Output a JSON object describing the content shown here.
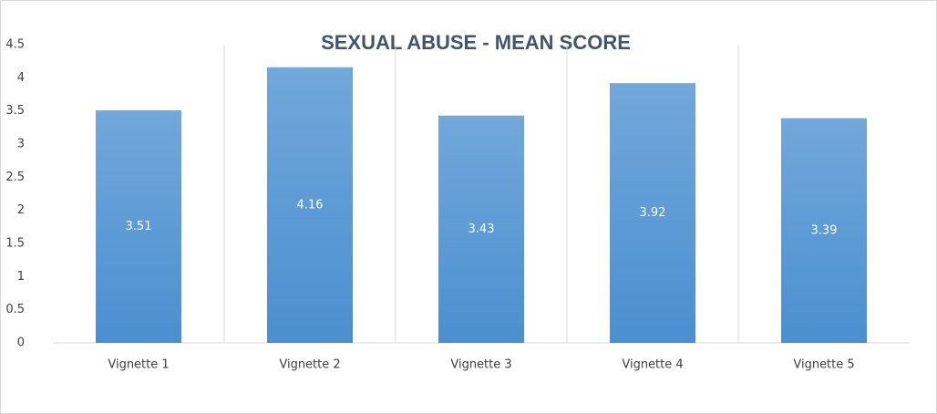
{
  "chart_data": {
    "type": "bar",
    "title": "SEXUAL ABUSE - MEAN SCORE",
    "categories": [
      "Vignette 1",
      "Vignette 2",
      "Vignette 3",
      "Vignette 4",
      "Vignette 5"
    ],
    "values": [
      3.51,
      4.16,
      3.43,
      3.92,
      3.39
    ],
    "color": "#4a8fd0",
    "ylim": [
      0,
      4.5
    ],
    "yticks": [
      0,
      0.5,
      1,
      1.5,
      2,
      2.5,
      3,
      3.5,
      4,
      4.5
    ],
    "grid": true
  }
}
